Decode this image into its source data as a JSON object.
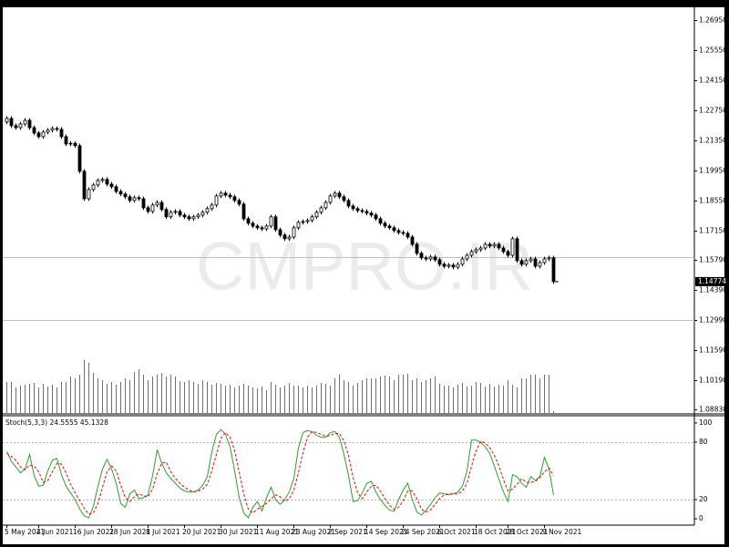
{
  "watermark": "CMPRO.IR",
  "chart_data": [
    {
      "type": "candlestick",
      "categories": [
        "5 May 2021",
        null,
        null,
        null,
        null,
        null,
        null,
        "4 Jun 2021",
        null,
        null,
        null,
        null,
        null,
        null,
        null,
        "16 Jun 2021",
        null,
        null,
        null,
        null,
        null,
        null,
        null,
        "28 Jun 2021",
        null,
        null,
        null,
        null,
        null,
        null,
        null,
        "8 Jul 2021",
        null,
        null,
        null,
        null,
        null,
        null,
        null,
        "20 Jul 2021",
        null,
        null,
        null,
        null,
        null,
        null,
        null,
        "30 Jul 2021",
        null,
        null,
        null,
        null,
        null,
        null,
        null,
        "11 Aug 2021",
        null,
        null,
        null,
        null,
        null,
        null,
        null,
        "23 Aug 2021",
        null,
        null,
        null,
        null,
        null,
        null,
        null,
        "2 Sep 2021",
        null,
        null,
        null,
        null,
        null,
        null,
        null,
        "14 Sep 2021",
        null,
        null,
        null,
        null,
        null,
        null,
        null,
        "24 Sep 2021",
        null,
        null,
        null,
        null,
        null,
        null,
        null,
        "6 Oct 2021",
        null,
        null,
        null,
        null,
        null,
        null,
        null,
        "18 Oct 2021",
        null,
        null,
        null,
        null,
        null,
        null,
        "28 Oct 2021",
        null,
        null,
        null,
        null,
        null,
        null,
        null,
        "9 Nov 2021",
        null,
        null
      ],
      "open": [
        1.222,
        1.2237,
        1.2203,
        1.2194,
        1.2211,
        1.2228,
        1.2194,
        1.2169,
        1.2152,
        1.2173,
        1.2182,
        1.219,
        1.2186,
        1.2152,
        1.2118,
        1.2121,
        1.211,
        1.1991,
        1.1863,
        1.1906,
        1.1927,
        1.1948,
        1.1953,
        1.1931,
        1.1919,
        1.1897,
        1.1885,
        1.1872,
        1.1855,
        1.1868,
        1.1863,
        1.1821,
        1.1804,
        1.1834,
        1.1846,
        1.1813,
        1.1779,
        1.18,
        1.1804,
        1.1787,
        1.1779,
        1.177,
        1.1779,
        1.1787,
        1.18,
        1.1817,
        1.1834,
        1.1876,
        1.1889,
        1.188,
        1.1872,
        1.1855,
        1.1838,
        1.177,
        1.1749,
        1.1736,
        1.1728,
        1.1723,
        1.1736,
        1.1779,
        1.1719,
        1.1694,
        1.1677,
        1.1685,
        1.1728,
        1.1753,
        1.1757,
        1.1762,
        1.1779,
        1.18,
        1.1821,
        1.1846,
        1.1876,
        1.1889,
        1.1872,
        1.1855,
        1.1829,
        1.1817,
        1.1808,
        1.1804,
        1.1796,
        1.1787,
        1.177,
        1.1749,
        1.1736,
        1.1728,
        1.1715,
        1.1706,
        1.1702,
        1.1685,
        1.1651,
        1.1609,
        1.1588,
        1.1583,
        1.1592,
        1.1579,
        1.1558,
        1.1549,
        1.1554,
        1.1545,
        1.1558,
        1.1583,
        1.16,
        1.1617,
        1.1626,
        1.1634,
        1.1651,
        1.1643,
        1.1651,
        1.1634,
        1.1617,
        1.16,
        1.1677,
        1.1575,
        1.1558,
        1.1575,
        1.1583,
        1.1549,
        1.1566,
        1.1583,
        1.1588
      ],
      "high": [
        1.2247,
        1.2247,
        1.2213,
        1.2221,
        1.2238,
        1.2238,
        1.2204,
        1.2179,
        1.2183,
        1.2192,
        1.22,
        1.22,
        1.2196,
        1.2162,
        1.2131,
        1.2131,
        1.212,
        1.2001,
        1.1916,
        1.1937,
        1.1958,
        1.1963,
        1.1963,
        1.1941,
        1.1929,
        1.1907,
        1.1895,
        1.1882,
        1.1878,
        1.1878,
        1.1873,
        1.1831,
        1.1844,
        1.1856,
        1.1856,
        1.1823,
        1.181,
        1.1814,
        1.1814,
        1.1797,
        1.1789,
        1.1789,
        1.1797,
        1.181,
        1.1827,
        1.1844,
        1.1886,
        1.1899,
        1.1899,
        1.189,
        1.1882,
        1.1865,
        1.1848,
        1.178,
        1.1759,
        1.1746,
        1.1738,
        1.1746,
        1.1789,
        1.1789,
        1.1729,
        1.1704,
        1.1695,
        1.1738,
        1.1763,
        1.1767,
        1.1772,
        1.1789,
        1.181,
        1.1831,
        1.1856,
        1.1886,
        1.1899,
        1.1899,
        1.1882,
        1.1865,
        1.1839,
        1.1827,
        1.1818,
        1.1814,
        1.1806,
        1.1797,
        1.178,
        1.1759,
        1.1746,
        1.1738,
        1.1725,
        1.1716,
        1.1712,
        1.1695,
        1.1661,
        1.1619,
        1.1598,
        1.1602,
        1.1602,
        1.1589,
        1.1568,
        1.1564,
        1.1564,
        1.1568,
        1.1593,
        1.161,
        1.1627,
        1.1636,
        1.1644,
        1.1661,
        1.1661,
        1.1661,
        1.1661,
        1.1644,
        1.1627,
        1.1687,
        1.1687,
        1.1585,
        1.1585,
        1.1593,
        1.1593,
        1.1576,
        1.1593,
        1.1598,
        1.1598
      ],
      "low": [
        1.221,
        1.2193,
        1.2184,
        1.2184,
        1.2201,
        1.2184,
        1.2159,
        1.2142,
        1.2142,
        1.2163,
        1.2172,
        1.2176,
        1.2142,
        1.2108,
        1.2108,
        1.21,
        1.1981,
        1.1853,
        1.1853,
        1.1896,
        1.1917,
        1.1938,
        1.1921,
        1.1909,
        1.1887,
        1.1875,
        1.1862,
        1.1845,
        1.1845,
        1.1853,
        1.1811,
        1.1794,
        1.1794,
        1.1824,
        1.1803,
        1.1769,
        1.1769,
        1.179,
        1.1777,
        1.1769,
        1.176,
        1.176,
        1.1769,
        1.1777,
        1.179,
        1.1807,
        1.1824,
        1.1866,
        1.187,
        1.1862,
        1.1845,
        1.1828,
        1.176,
        1.1739,
        1.1726,
        1.1718,
        1.1713,
        1.1713,
        1.1726,
        1.1709,
        1.1684,
        1.1667,
        1.1667,
        1.1675,
        1.1718,
        1.1743,
        1.1747,
        1.1752,
        1.1769,
        1.179,
        1.1811,
        1.1836,
        1.1866,
        1.1862,
        1.1845,
        1.1819,
        1.1807,
        1.1798,
        1.1794,
        1.1786,
        1.1777,
        1.176,
        1.1739,
        1.1726,
        1.1718,
        1.1705,
        1.1696,
        1.1692,
        1.1675,
        1.1641,
        1.1599,
        1.1578,
        1.1573,
        1.1573,
        1.1569,
        1.1548,
        1.1539,
        1.1539,
        1.1535,
        1.1535,
        1.1548,
        1.1573,
        1.159,
        1.1607,
        1.1616,
        1.1624,
        1.1633,
        1.1633,
        1.1624,
        1.1607,
        1.159,
        1.159,
        1.1565,
        1.1548,
        1.1548,
        1.1565,
        1.1539,
        1.1539,
        1.1556,
        1.1573,
        1.1467
      ],
      "close": [
        1.2237,
        1.2203,
        1.2194,
        1.2211,
        1.2228,
        1.2194,
        1.2169,
        1.2152,
        1.2173,
        1.2182,
        1.219,
        1.2186,
        1.2152,
        1.2118,
        1.2121,
        1.211,
        1.1991,
        1.1863,
        1.1906,
        1.1927,
        1.1948,
        1.1953,
        1.1931,
        1.1919,
        1.1897,
        1.1885,
        1.1872,
        1.1855,
        1.1868,
        1.1863,
        1.1821,
        1.1804,
        1.1834,
        1.1846,
        1.1813,
        1.1779,
        1.18,
        1.1804,
        1.1787,
        1.1779,
        1.177,
        1.1779,
        1.1787,
        1.18,
        1.1817,
        1.1834,
        1.1876,
        1.1889,
        1.188,
        1.1872,
        1.1855,
        1.1838,
        1.177,
        1.1749,
        1.1736,
        1.1728,
        1.1723,
        1.1736,
        1.1779,
        1.1719,
        1.1694,
        1.1677,
        1.1685,
        1.1728,
        1.1753,
        1.1757,
        1.1762,
        1.1779,
        1.18,
        1.1821,
        1.1846,
        1.1876,
        1.1889,
        1.1872,
        1.1855,
        1.1829,
        1.1817,
        1.1808,
        1.1804,
        1.1796,
        1.1787,
        1.177,
        1.1749,
        1.1736,
        1.1728,
        1.1715,
        1.1706,
        1.1702,
        1.1685,
        1.1651,
        1.1609,
        1.1588,
        1.1583,
        1.1592,
        1.1579,
        1.1558,
        1.1549,
        1.1554,
        1.1545,
        1.1558,
        1.1583,
        1.16,
        1.1617,
        1.1626,
        1.1634,
        1.1651,
        1.1643,
        1.1651,
        1.1634,
        1.1617,
        1.16,
        1.1677,
        1.1575,
        1.1558,
        1.1575,
        1.1583,
        1.1549,
        1.1566,
        1.1583,
        1.1588,
        1.14774
      ],
      "volume": [
        34,
        34,
        28,
        30,
        31,
        32,
        33,
        28,
        32,
        29,
        31,
        28,
        34,
        34,
        40,
        38,
        42,
        58,
        55,
        44,
        38,
        36,
        32,
        34,
        31,
        34,
        38,
        36,
        45,
        48,
        42,
        36,
        40,
        42,
        44,
        40,
        42,
        40,
        35,
        34,
        36,
        34,
        32,
        36,
        34,
        31,
        33,
        32,
        30,
        31,
        28,
        30,
        32,
        30,
        28,
        27,
        29,
        25,
        34,
        31,
        28,
        30,
        33,
        30,
        30,
        28,
        30,
        28,
        30,
        33,
        32,
        30,
        38,
        42,
        36,
        34,
        30,
        33,
        36,
        38,
        38,
        38,
        40,
        41,
        40,
        36,
        42,
        42,
        43,
        36,
        38,
        34,
        36,
        38,
        40,
        32,
        30,
        30,
        28,
        31,
        33,
        29,
        30,
        34,
        33,
        29,
        32,
        29,
        31,
        30,
        36,
        31,
        28,
        38,
        38,
        42,
        42,
        38,
        42,
        42,
        2
      ],
      "ylim": [
        1.0866,
        1.2754
      ],
      "yticks": [
        {
          "value": 1.2695,
          "label": "1.26950"
        },
        {
          "value": 1.2555,
          "label": "1.25550"
        },
        {
          "value": 1.2415,
          "label": "1.24150"
        },
        {
          "value": 1.2275,
          "label": "1.22750"
        },
        {
          "value": 1.2135,
          "label": "1.21350"
        },
        {
          "value": 1.1995,
          "label": "1.19950"
        },
        {
          "value": 1.1855,
          "label": "1.18550"
        },
        {
          "value": 1.1715,
          "label": "1.17150"
        },
        {
          "value": 1.1579,
          "label": "1.15790"
        },
        {
          "value": 1.1439,
          "label": "1.14390"
        },
        {
          "value": 1.1299,
          "label": "1.12990"
        },
        {
          "value": 1.1159,
          "label": "1.11590"
        },
        {
          "value": 1.1019,
          "label": "1.10190"
        },
        {
          "value": 1.0883,
          "label": "1.08830"
        }
      ],
      "hlines": [
        1.1592,
        1.1299
      ],
      "current_price": {
        "value": 1.14774,
        "label": "1.14774"
      },
      "bull_color": "#ffffff",
      "bear_color": "#000000",
      "volume_color": "#707070"
    },
    {
      "type": "line",
      "indicator": "Stoch(5,3,3)",
      "ylim": [
        -6.6,
        107.5
      ],
      "yticks": [
        0,
        20,
        80,
        100
      ],
      "levels": [
        20,
        80
      ],
      "series": [
        {
          "name": "%K",
          "color": "#2ca02c",
          "dashed": false,
          "values": [
            70,
            60,
            54,
            48,
            52,
            67,
            45,
            34,
            35,
            50,
            61,
            63,
            46,
            34,
            27,
            20,
            10,
            3,
            1,
            13,
            34,
            52,
            62,
            52,
            37,
            16,
            12,
            26,
            30,
            21,
            22,
            25,
            45,
            72,
            58,
            48,
            42,
            37,
            32,
            29,
            28,
            28,
            30,
            35,
            44,
            70,
            88,
            93,
            88,
            75,
            50,
            22,
            6,
            1,
            12,
            18,
            8,
            22,
            33,
            20,
            15,
            20,
            28,
            42,
            74,
            90,
            92,
            91,
            87,
            85,
            85,
            90,
            91,
            85,
            67,
            45,
            18,
            19,
            27,
            37,
            39,
            28,
            20,
            14,
            9,
            8,
            20,
            30,
            37,
            20,
            7,
            4,
            9,
            15,
            22,
            27,
            26,
            25,
            26,
            28,
            34,
            50,
            82,
            82,
            80,
            75,
            68,
            55,
            41,
            28,
            18,
            46,
            44,
            37,
            33,
            44,
            40,
            44,
            64,
            52,
            24.5555
          ]
        },
        {
          "name": "%D",
          "color": "#ff0000",
          "dashed": true,
          "values": [
            68,
            65,
            61,
            54,
            51,
            56,
            55,
            49,
            38,
            40,
            49,
            58,
            57,
            48,
            36,
            27,
            19,
            11,
            5,
            6,
            16,
            33,
            49,
            55,
            50,
            35,
            22,
            18,
            23,
            26,
            24,
            23,
            31,
            47,
            58,
            59,
            49,
            42,
            37,
            33,
            30,
            28,
            29,
            31,
            36,
            50,
            67,
            84,
            90,
            85,
            71,
            49,
            26,
            10,
            6,
            10,
            13,
            16,
            21,
            25,
            23,
            18,
            21,
            30,
            48,
            69,
            85,
            91,
            90,
            88,
            86,
            87,
            89,
            89,
            81,
            66,
            43,
            27,
            21,
            28,
            34,
            35,
            29,
            21,
            14,
            10,
            12,
            19,
            29,
            29,
            21,
            10,
            7,
            9,
            15,
            21,
            25,
            26,
            26,
            26,
            29,
            37,
            55,
            71,
            81,
            79,
            74,
            66,
            55,
            41,
            29,
            31,
            36,
            42,
            38,
            38,
            39,
            43,
            49,
            53,
            45.1328
          ]
        }
      ]
    }
  ]
}
